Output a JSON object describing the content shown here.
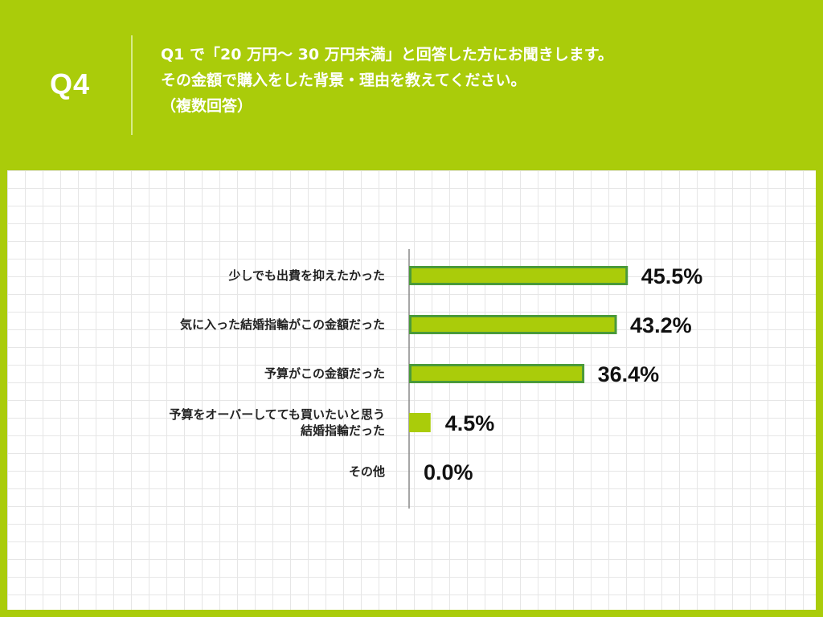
{
  "header": {
    "qnum": "Q4",
    "question_lines": [
      "Q1 で「20 万円〜 30 万円未満」と回答した方にお聞きします。",
      "その金額で購入をした背景・理由を教えてください。",
      "（複数回答）"
    ]
  },
  "colors": {
    "background": "#aacc0a",
    "bar_fill": "#aacc0a",
    "bar_border": "#4a9a3a",
    "panel": "#ffffff"
  },
  "chart_data": {
    "type": "bar",
    "orientation": "horizontal",
    "categories": [
      [
        "少しでも出費を抑えたかった"
      ],
      [
        "気に入った結婚指輪がこの金額だった"
      ],
      [
        "予算がこの金額だった"
      ],
      [
        "予算をオーバーしてても買いたいと思う",
        "結婚指輪だった"
      ],
      [
        "その他"
      ]
    ],
    "values": [
      45.5,
      43.2,
      36.4,
      4.5,
      0.0
    ],
    "value_labels": [
      "45.5%",
      "43.2%",
      "36.4%",
      "4.5%",
      "0.0%"
    ],
    "xlim": [
      0,
      100
    ],
    "grid": true
  }
}
